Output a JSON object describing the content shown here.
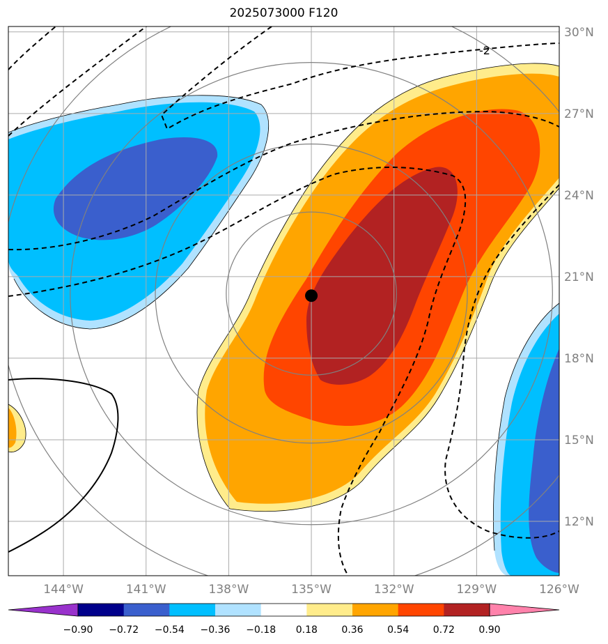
{
  "title": "2025073000 F120",
  "map": {
    "lon_range": [
      -146.0,
      -126.0
    ],
    "lat_range": [
      10.0,
      30.2
    ],
    "lon_ticks": [
      "144°W",
      "141°W",
      "138°W",
      "135°W",
      "132°W",
      "129°W",
      "126°W"
    ],
    "lat_ticks": [
      "30°N",
      "27°N",
      "24°N",
      "21°N",
      "18°N",
      "15°N",
      "12°N"
    ],
    "storm_center": {
      "lon": -135.0,
      "lat": 20.3
    },
    "range_rings_deg": [
      3,
      5.5,
      8.5,
      11
    ],
    "contour_label": "-2"
  },
  "colorbar": {
    "labels": [
      "−0.90",
      "−0.72",
      "−0.54",
      "−0.36",
      "−0.18",
      "0.18",
      "0.36",
      "0.54",
      "0.72",
      "0.90"
    ],
    "colors": [
      "#9932cc",
      "#00008b",
      "#3a5fcd",
      "#00bfff",
      "#b0e2ff",
      "#ffffff",
      "#ffec8b",
      "#ffa500",
      "#ff4500",
      "#b22222",
      "#ff82ab"
    ]
  },
  "colors": {
    "pos_1": "#ffec8b",
    "pos_2": "#ffa500",
    "pos_3": "#ff4500",
    "pos_4": "#b22222",
    "neg_1": "#b0e2ff",
    "neg_2": "#00bfff",
    "neg_3": "#3a5fcd",
    "grid": "#999999",
    "ring": "#808080"
  }
}
